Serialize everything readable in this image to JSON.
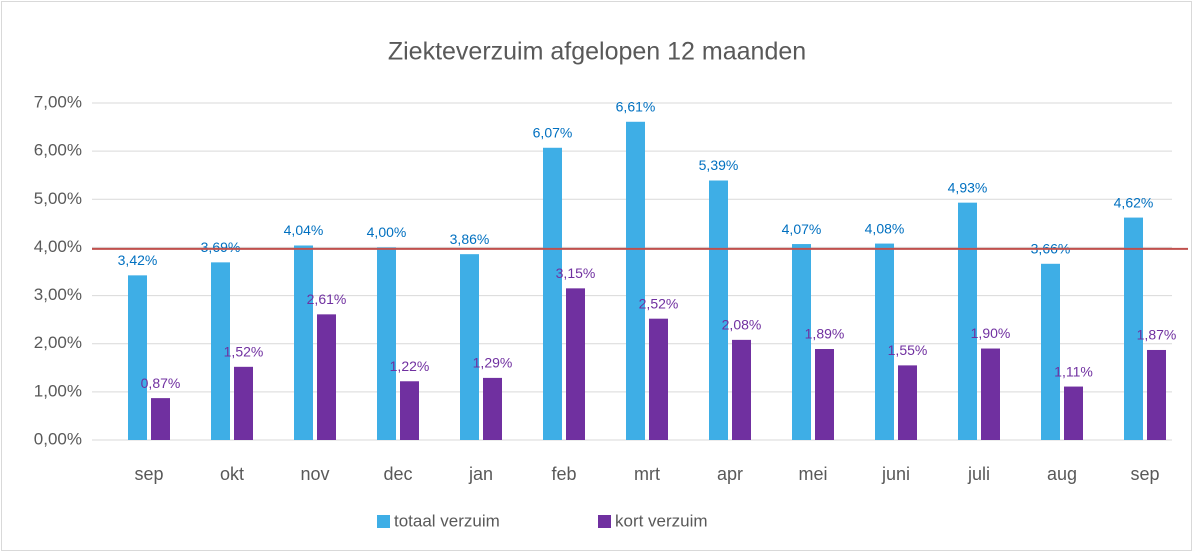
{
  "chart_data": {
    "type": "bar",
    "title": "Ziekteverzuim afgelopen 12 maanden",
    "categories": [
      "sep",
      "okt",
      "nov",
      "dec",
      "jan",
      "feb",
      "mrt",
      "apr",
      "mei",
      "juni",
      "juli",
      "aug",
      "sep"
    ],
    "series": [
      {
        "name": "totaal verzuim",
        "color": "#3eaee6",
        "label_color": "#0070c0",
        "values": [
          3.42,
          3.69,
          4.04,
          4.0,
          3.86,
          6.07,
          6.61,
          5.39,
          4.07,
          4.08,
          4.93,
          3.66,
          4.62
        ],
        "value_labels": [
          "3,42%",
          "3,69%",
          "4,04%",
          "4,00%",
          "3,86%",
          "6,07%",
          "6,61%",
          "5,39%",
          "4,07%",
          "4,08%",
          "4,93%",
          "3,66%",
          "4,62%"
        ]
      },
      {
        "name": "kort verzuim",
        "color": "#7030a0",
        "label_color": "#7030a0",
        "values": [
          0.87,
          1.52,
          2.61,
          1.22,
          1.29,
          3.15,
          2.52,
          2.08,
          1.89,
          1.55,
          1.9,
          1.11,
          1.87
        ],
        "value_labels": [
          "0,87%",
          "1,52%",
          "2,61%",
          "1,22%",
          "1,29%",
          "3,15%",
          "2,52%",
          "2,08%",
          "1,89%",
          "1,55%",
          "1,90%",
          "1,11%",
          "1,87%"
        ]
      }
    ],
    "reference_line": {
      "value": 3.97,
      "color": "#c0504d"
    },
    "ylim": [
      0,
      7
    ],
    "yticks": [
      {
        "value": 0,
        "label": "0,00%"
      },
      {
        "value": 1,
        "label": "1,00%"
      },
      {
        "value": 2,
        "label": "2,00%"
      },
      {
        "value": 3,
        "label": "3,00%"
      },
      {
        "value": 4,
        "label": "4,00%"
      },
      {
        "value": 5,
        "label": "5,00%"
      },
      {
        "value": 6,
        "label": "6,00%"
      },
      {
        "value": 7,
        "label": "7,00%"
      }
    ],
    "grid": true,
    "legend": "bottom"
  }
}
